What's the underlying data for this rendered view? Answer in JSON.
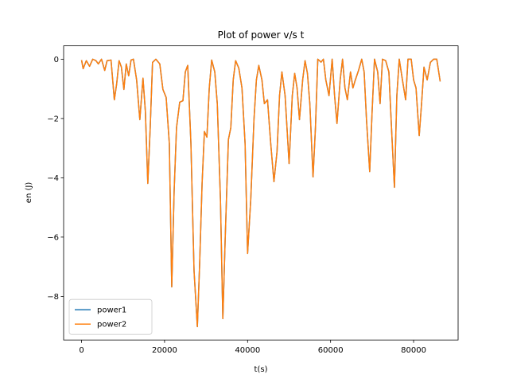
{
  "chart_data": {
    "type": "line",
    "title": "Plot of power v/s t",
    "x_label": "t(s)",
    "y_label": "en (J)",
    "x": [
      0,
      385,
      1150,
      1920,
      2700,
      3460,
      4040,
      4800,
      5580,
      6150,
      7100,
      7900,
      8460,
      9040,
      9600,
      10200,
      10770,
      11350,
      11920,
      12500,
      13270,
      14040,
      14800,
      15380,
      15960,
      16540,
      17100,
      17900,
      18850,
      19600,
      20380,
      21150,
      21730,
      22300,
      22880,
      23650,
      24420,
      25000,
      25580,
      26350,
      27100,
      27900,
      28460,
      29040,
      29600,
      30200,
      30770,
      31350,
      32100,
      32700,
      33460,
      34040,
      34600,
      35380,
      35960,
      36540,
      37120,
      37880,
      38650,
      39400,
      40000,
      40770,
      41540,
      42120,
      42700,
      43460,
      44040,
      44800,
      45580,
      46350,
      47100,
      47700,
      48270,
      49040,
      50000,
      50770,
      51350,
      51920,
      52500,
      53270,
      53850,
      54420,
      55000,
      55770,
      56350,
      56920,
      57700,
      58270,
      58850,
      59620,
      60380,
      60960,
      61540,
      62310,
      62880,
      63460,
      64040,
      64800,
      65380,
      65960,
      66730,
      67500,
      68080,
      68650,
      69420,
      70000,
      70580,
      71350,
      71920,
      72500,
      73270,
      74040,
      74810,
      75380,
      75960,
      76540,
      77310,
      78080,
      78650,
      79420,
      80000,
      80580,
      81350,
      81920,
      82500,
      83270,
      84040,
      84810,
      85580,
      86400
    ],
    "series": [
      {
        "name": "power1",
        "color": "#1f77b4",
        "values": [
          -0.03,
          -0.32,
          -0.05,
          -0.24,
          0,
          -0.05,
          -0.16,
          0,
          -0.38,
          -0.05,
          -0.03,
          -1.37,
          -0.83,
          -0.05,
          -0.27,
          -1.02,
          -0.16,
          -0.56,
          -0.03,
          0,
          -0.7,
          -2.04,
          -0.64,
          -1.77,
          -4.19,
          -2.31,
          -0.11,
          0,
          -0.16,
          -1.02,
          -1.29,
          -2.85,
          -7.68,
          -4.46,
          -2.31,
          -1.45,
          -1.4,
          -0.43,
          -0.21,
          -2.85,
          -7.14,
          -9.02,
          -6.87,
          -4.19,
          -2.44,
          -2.63,
          -0.97,
          -0.03,
          -0.43,
          -1.5,
          -4.72,
          -8.75,
          -6.07,
          -2.71,
          -2.31,
          -0.7,
          -0.05,
          -0.3,
          -0.97,
          -2.85,
          -6.55,
          -4.72,
          -2.04,
          -0.7,
          -0.21,
          -0.7,
          -1.5,
          -1.37,
          -2.85,
          -4.13,
          -3.11,
          -1.23,
          -0.43,
          -1.23,
          -3.52,
          -1.23,
          -0.48,
          -0.97,
          -2.04,
          -0.7,
          -0.05,
          -0.48,
          -1.5,
          -3.97,
          -2.31,
          0,
          -0.1,
          0,
          -0.7,
          -1.23,
          0,
          -1.23,
          -2.17,
          -0.7,
          0,
          -0.97,
          -1.37,
          -0.43,
          -0.97,
          -0.7,
          -0.38,
          0,
          -0.43,
          -2.04,
          -3.79,
          -1.77,
          0,
          -0.43,
          -1.5,
          0,
          -0.05,
          -0.43,
          -2.71,
          -4.32,
          -1.23,
          0,
          -0.7,
          -1.37,
          0,
          0,
          -0.7,
          -0.97,
          -2.58,
          -1.5,
          -0.27,
          -0.7,
          -0.11,
          0,
          0,
          -0.75
        ]
      },
      {
        "name": "power2",
        "color": "#ff7f0e",
        "values": [
          -0.03,
          -0.32,
          -0.05,
          -0.24,
          0,
          -0.05,
          -0.16,
          0,
          -0.38,
          -0.05,
          -0.03,
          -1.37,
          -0.83,
          -0.05,
          -0.27,
          -1.02,
          -0.16,
          -0.56,
          -0.03,
          0,
          -0.7,
          -2.04,
          -0.64,
          -1.77,
          -4.19,
          -2.31,
          -0.11,
          0,
          -0.16,
          -1.02,
          -1.29,
          -2.85,
          -7.68,
          -4.46,
          -2.31,
          -1.45,
          -1.4,
          -0.43,
          -0.21,
          -2.85,
          -7.14,
          -9.02,
          -6.87,
          -4.19,
          -2.44,
          -2.63,
          -0.97,
          -0.03,
          -0.43,
          -1.5,
          -4.72,
          -8.75,
          -6.07,
          -2.71,
          -2.31,
          -0.7,
          -0.05,
          -0.3,
          -0.97,
          -2.85,
          -6.55,
          -4.72,
          -2.04,
          -0.7,
          -0.21,
          -0.7,
          -1.5,
          -1.37,
          -2.85,
          -4.13,
          -3.11,
          -1.23,
          -0.43,
          -1.23,
          -3.52,
          -1.23,
          -0.48,
          -0.97,
          -2.04,
          -0.7,
          -0.05,
          -0.48,
          -1.5,
          -3.97,
          -2.31,
          0,
          -0.1,
          0,
          -0.7,
          -1.23,
          0,
          -1.23,
          -2.17,
          -0.7,
          0,
          -0.97,
          -1.37,
          -0.43,
          -0.97,
          -0.7,
          -0.38,
          0,
          -0.43,
          -2.04,
          -3.79,
          -1.77,
          0,
          -0.43,
          -1.5,
          0,
          -0.05,
          -0.43,
          -2.71,
          -4.32,
          -1.23,
          0,
          -0.7,
          -1.37,
          0,
          0,
          -0.7,
          -0.97,
          -2.58,
          -1.5,
          -0.27,
          -0.7,
          -0.11,
          0,
          0,
          -0.75
        ]
      }
    ],
    "xlim": [
      -4320,
      90720
    ],
    "ylim": [
      -9.47,
      0.45
    ],
    "xticks": [
      0,
      20000,
      40000,
      60000,
      80000
    ],
    "yticks": [
      0,
      {
        "value": -2,
        "label": "−2"
      },
      {
        "value": -4,
        "label": "−4"
      },
      {
        "value": -6,
        "label": "−6"
      },
      {
        "value": -8,
        "label": "−8"
      }
    ],
    "legend": "lower left"
  }
}
